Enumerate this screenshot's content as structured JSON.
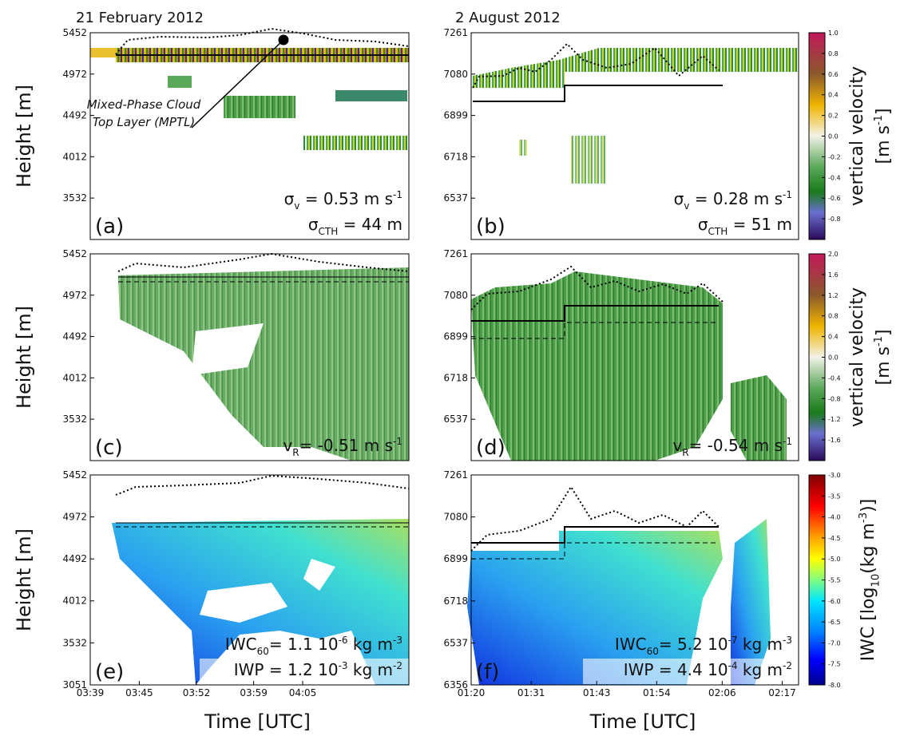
{
  "chart_data": [
    {
      "type": "heatmap",
      "panel_label": "(a)",
      "title": "21 February 2012",
      "ylabel": "Height [m]",
      "ylim": [
        3051,
        5452
      ],
      "yticks": [
        5452,
        4972,
        4492,
        4012,
        3532
      ],
      "annotations": [
        [
          "σ",
          "v",
          " = 0.53 m s",
          "-1"
        ],
        [
          "σ",
          "CTH",
          " = 44 m"
        ]
      ],
      "callout": [
        "Mixed-Phase Cloud",
        "Top Layer (MPTL)"
      ]
    },
    {
      "type": "heatmap",
      "panel_label": "(b)",
      "title": "2 August 2012",
      "ylim": [
        6356,
        7261
      ],
      "yticks": [
        7261,
        7080,
        6899,
        6718,
        6537
      ],
      "annotations": [
        [
          "σ",
          "v",
          " = 0.28 m s",
          "-1"
        ],
        [
          "σ",
          "CTH",
          " = 51 m"
        ]
      ]
    },
    {
      "type": "heatmap",
      "panel_label": "(c)",
      "ylabel": "Height [m]",
      "ylim": [
        3051,
        5452
      ],
      "yticks": [
        5452,
        4972,
        4492,
        4012,
        3532
      ],
      "annotations": [
        [
          "v",
          "R",
          "= -0.51 m s",
          "-1"
        ]
      ]
    },
    {
      "type": "heatmap",
      "panel_label": "(d)",
      "ylim": [
        6356,
        7261
      ],
      "yticks": [
        7261,
        7080,
        6899,
        6718,
        6537
      ],
      "annotations": [
        [
          "v",
          "R",
          "= -0.54 m s",
          "-1"
        ]
      ]
    },
    {
      "type": "heatmap",
      "panel_label": "(e)",
      "ylabel": "Height [m]",
      "xlabel": "Time [UTC]",
      "ylim": [
        3051,
        5452
      ],
      "yticks": [
        5452,
        4972,
        4492,
        4012,
        3532,
        3051
      ],
      "xlim": [
        219,
        258
      ],
      "xticks": [
        {
          "value": 219,
          "label": "03:39"
        },
        {
          "value": 225,
          "label": "03:45"
        },
        {
          "value": 232,
          "label": "03:52"
        },
        {
          "value": 239,
          "label": "03:59"
        },
        {
          "value": 245,
          "label": "04:05"
        }
      ],
      "annotations": [
        [
          "IWC",
          "60",
          "= 1.1 10",
          "-6",
          "  kg m",
          "-3"
        ],
        [
          "IWP = 1.2 10",
          "-3",
          " kg m",
          "-2"
        ]
      ]
    },
    {
      "type": "heatmap",
      "panel_label": "(f)",
      "xlabel": "Time [UTC]",
      "ylim": [
        6356,
        7261
      ],
      "yticks": [
        7261,
        7080,
        6899,
        6718,
        6537,
        6356
      ],
      "xlim": [
        80,
        140
      ],
      "xticks": [
        {
          "value": 80,
          "label": "01:20"
        },
        {
          "value": 91,
          "label": "01:31"
        },
        {
          "value": 103,
          "label": "01:43"
        },
        {
          "value": 114,
          "label": "01:54"
        },
        {
          "value": 126,
          "label": "02:06"
        },
        {
          "value": 137,
          "label": "02:17"
        }
      ],
      "annotations": [
        [
          "IWC",
          "60",
          "= 5.2 10",
          "-7",
          "  kg m",
          "-3"
        ],
        [
          "IWP = 4.4 10",
          "-4",
          " kg m",
          "-2"
        ]
      ]
    }
  ],
  "colorbars": [
    {
      "label": [
        "vertical velocity",
        "[m s",
        "-1",
        "]"
      ],
      "lim": [
        -1,
        1
      ],
      "ticks": [
        {
          "value": 1,
          "label": "1.0"
        },
        0.8,
        0.6,
        0.4,
        0.2,
        {
          "value": 0,
          "label": "0.0"
        },
        -0.2,
        -0.4,
        -0.6,
        -0.8
      ]
    },
    {
      "label": [
        "vertical velocity",
        "[m s",
        "-1",
        "]"
      ],
      "lim": [
        -2,
        2
      ],
      "ticks": [
        {
          "value": 2,
          "label": "2.0"
        },
        1.6,
        1.2,
        0.8,
        0.4,
        {
          "value": 0,
          "label": "0.0"
        },
        -0.4,
        -0.8,
        -1.2,
        -1.6
      ]
    },
    {
      "label": [
        "IWC [log",
        "10",
        "(kg m",
        "-3",
        ")]"
      ],
      "lim": [
        -8,
        -3
      ],
      "ticks": [
        {
          "value": -3,
          "label": "-3.0"
        },
        -3.5,
        {
          "value": -4,
          "label": "-4.0"
        },
        -4.5,
        {
          "value": -5,
          "label": "-5.0"
        },
        -5.5,
        {
          "value": -6,
          "label": "-6.0"
        },
        -6.5,
        {
          "value": -7,
          "label": "-7.0"
        },
        -7.5,
        {
          "value": -8,
          "label": "-8.0"
        }
      ]
    }
  ]
}
